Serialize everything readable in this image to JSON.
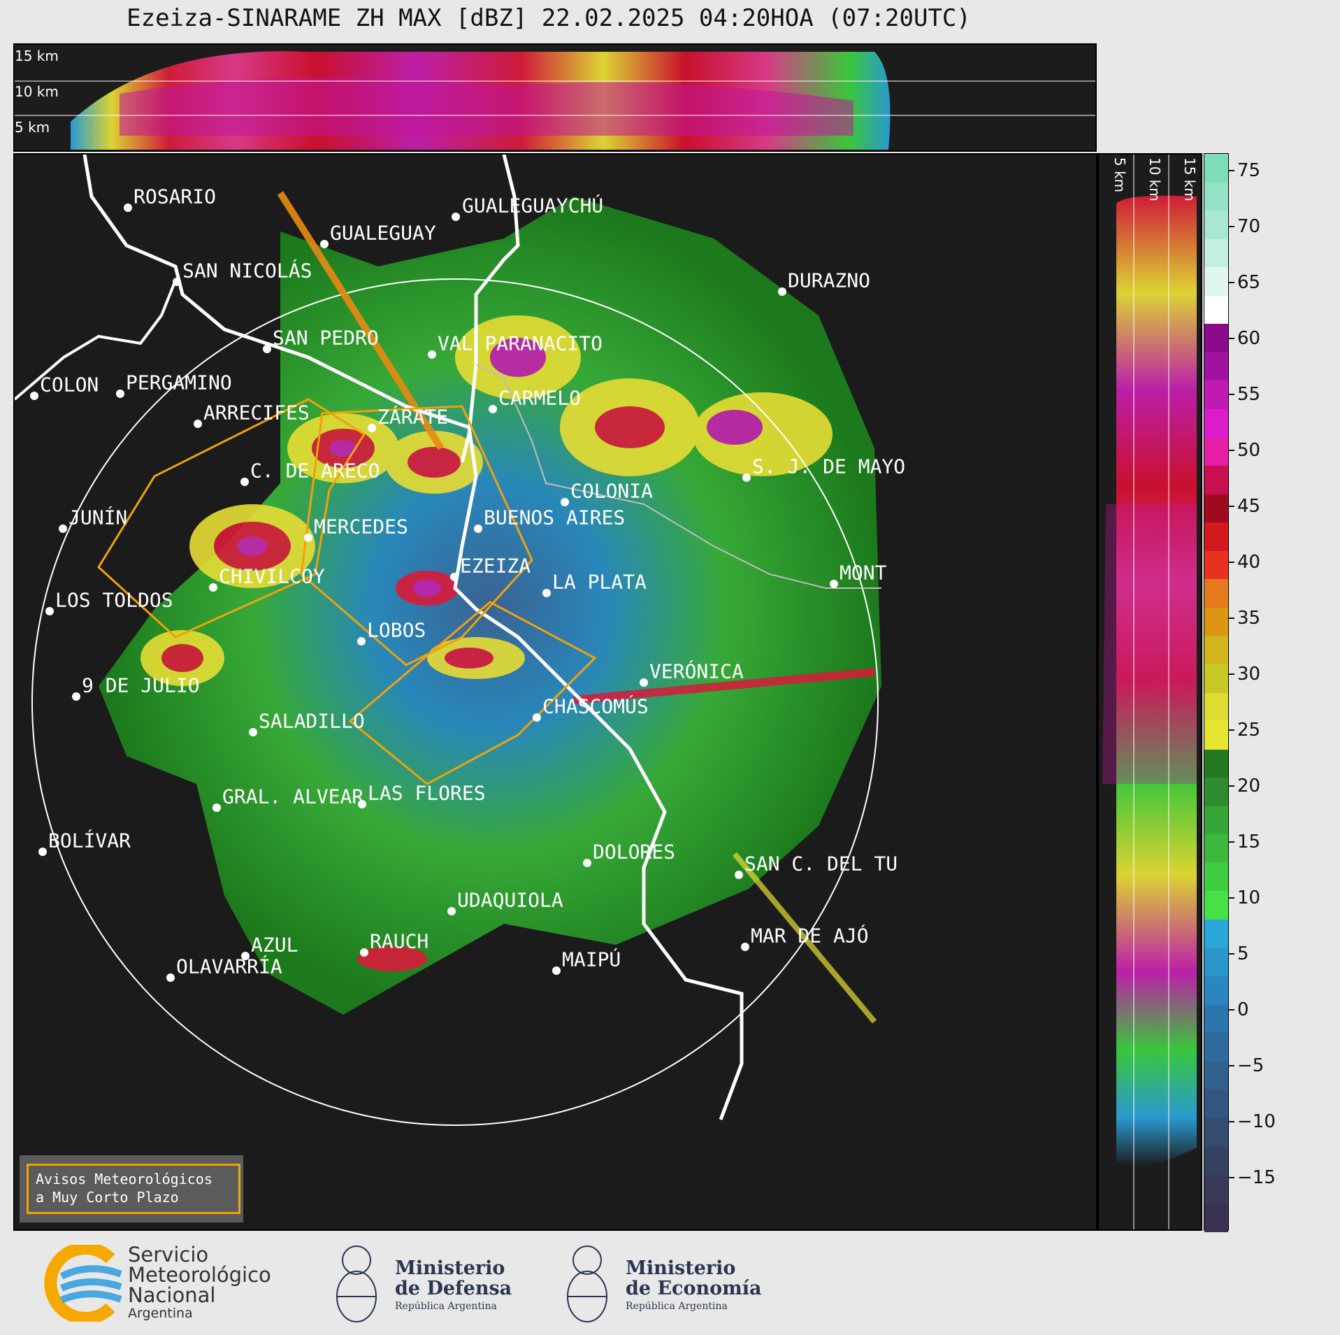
{
  "title": "Ezeiza-SINARAME ZH MAX [dBZ] 22.02.2025 04:20HOA (07:20UTC)",
  "cross_top": {
    "labels": [
      "15 km",
      "10 km",
      "5 km"
    ]
  },
  "cross_right": {
    "labels": [
      "5 km",
      "10 km",
      "15 km"
    ]
  },
  "colorbar": {
    "unit": "dBZ",
    "ticks": [
      "75",
      "70",
      "65",
      "60",
      "55",
      "50",
      "45",
      "40",
      "35",
      "30",
      "25",
      "20",
      "15",
      "10",
      "5",
      "0",
      "−5",
      "−10",
      "−15"
    ]
  },
  "cities": [
    {
      "name": "ROSARIO"
    },
    {
      "name": "GUALEGUAYCHÚ"
    },
    {
      "name": "GUALEGUAY"
    },
    {
      "name": "SAN NICOLÁS"
    },
    {
      "name": "DURAZNO"
    },
    {
      "name": "SAN PEDRO"
    },
    {
      "name": "VAL PARANACITO"
    },
    {
      "name": "COLON"
    },
    {
      "name": "PERGAMINO"
    },
    {
      "name": "CARMELO"
    },
    {
      "name": "ARRECIFES"
    },
    {
      "name": "ZÁRATE"
    },
    {
      "name": "S. J. DE MAYO"
    },
    {
      "name": "C. DE ARECO"
    },
    {
      "name": "COLONIA"
    },
    {
      "name": "JUNÍN"
    },
    {
      "name": "BUENOS AIRES"
    },
    {
      "name": "MERCEDES"
    },
    {
      "name": "MONTEVIDEO"
    },
    {
      "name": "EZEIZA"
    },
    {
      "name": "CHIVILCOY"
    },
    {
      "name": "LA PLATA"
    },
    {
      "name": "LOS TOLDOS"
    },
    {
      "name": "LOBOS"
    },
    {
      "name": "VERÓNICA"
    },
    {
      "name": "9 DE JULIO"
    },
    {
      "name": "CHASCOMÚS"
    },
    {
      "name": "SALADILLO"
    },
    {
      "name": "GRAL. ALVEAR"
    },
    {
      "name": "LAS FLORES"
    },
    {
      "name": "BOLÍVAR"
    },
    {
      "name": "DOLORES"
    },
    {
      "name": "SAN C. DEL TUYÚ"
    },
    {
      "name": "UDAQUIOLA"
    },
    {
      "name": "AZUL"
    },
    {
      "name": "RAUCH"
    },
    {
      "name": "MAR DE AJÓ"
    },
    {
      "name": "OLAVARRÍA"
    },
    {
      "name": "MAIPÚ"
    }
  ],
  "aviso": {
    "line1": "Avisos Meteorológicos",
    "line2": "a Muy Corto Plazo"
  },
  "logos": {
    "smn": {
      "line1": "Servicio",
      "line2": "Meteorológico",
      "line3": "Nacional",
      "line4": "Argentina"
    },
    "defensa": {
      "line1": "Ministerio",
      "line2": "de Defensa",
      "line3": "República Argentina"
    },
    "economia": {
      "line1": "Ministerio",
      "line2": "de Economía",
      "line3": "República Argentina"
    }
  }
}
